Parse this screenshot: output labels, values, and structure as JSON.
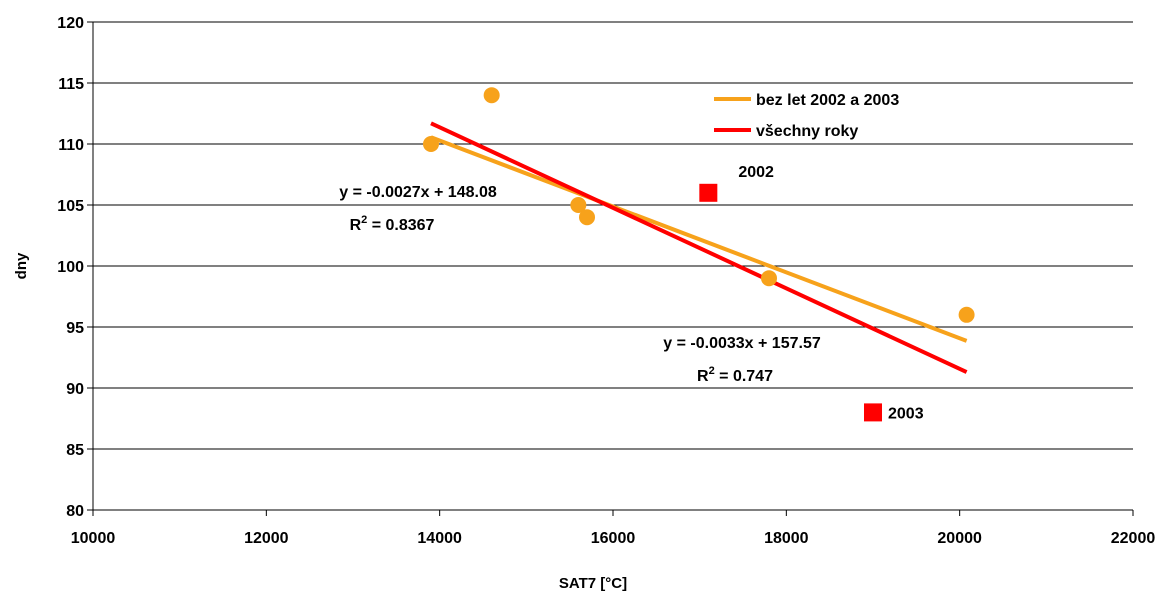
{
  "chart_data": {
    "type": "scatter",
    "xlabel": "SAT7 [°C]",
    "ylabel": "dny",
    "xlim": [
      10000,
      22000
    ],
    "ylim": [
      80,
      120
    ],
    "xticks": [
      10000,
      12000,
      14000,
      16000,
      18000,
      20000,
      22000
    ],
    "yticks": [
      80,
      85,
      90,
      95,
      100,
      105,
      110,
      115,
      120
    ],
    "grid": "horizontal",
    "legend_position": "top-right",
    "colors": {
      "orange": "#F7A21B",
      "red": "#FF0000"
    },
    "series": [
      {
        "marker": "circle",
        "color": "#F7A21B",
        "points": [
          {
            "x": 13900,
            "y": 110
          },
          {
            "x": 14600,
            "y": 114
          },
          {
            "x": 15600,
            "y": 105
          },
          {
            "x": 15700,
            "y": 104
          },
          {
            "x": 17800,
            "y": 99
          },
          {
            "x": 20080,
            "y": 96
          }
        ]
      },
      {
        "marker": "square",
        "color": "#FF0000",
        "points": [
          {
            "x": 17100,
            "y": 106,
            "label": "2002"
          },
          {
            "x": 19000,
            "y": 88,
            "label": "2003"
          }
        ]
      }
    ],
    "trendlines": [
      {
        "name": "bez let 2002 a 2003",
        "color": "#F7A21B",
        "slope": -0.0027,
        "intercept": 148.08,
        "x_range": [
          13900,
          20080
        ],
        "equation": "y = -0.0027x + 148.08",
        "r2_prefix": "R",
        "r2_sup": "2",
        "r2_value": " = 0.8367"
      },
      {
        "name": "všechny roky",
        "color": "#FF0000",
        "slope": -0.0033,
        "intercept": 157.57,
        "x_range": [
          13900,
          20080
        ],
        "equation": "y = -0.0033x + 157.57",
        "r2_prefix": "R",
        "r2_sup": "2",
        "r2_value": " = 0.747"
      }
    ]
  }
}
